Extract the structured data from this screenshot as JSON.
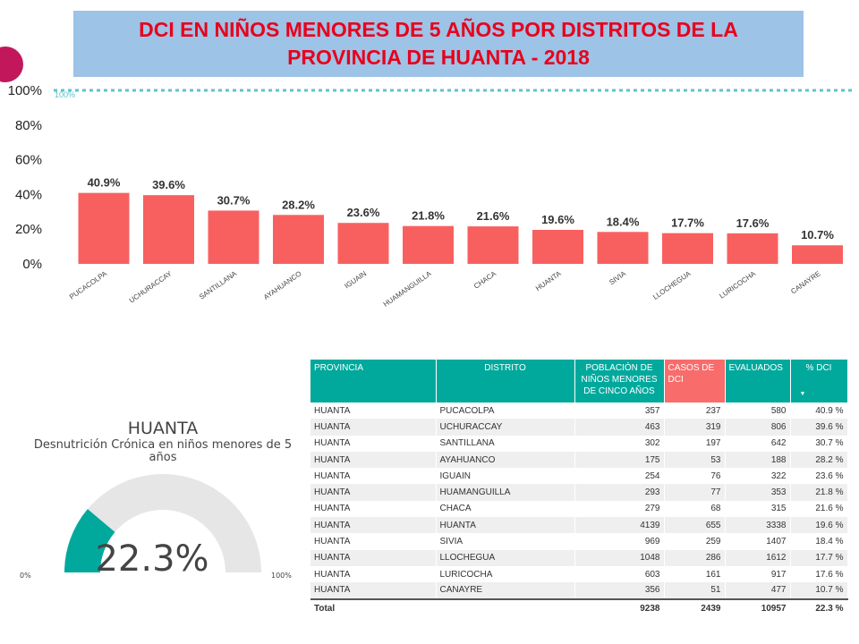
{
  "title": {
    "line1": "DCI EN NIÑOS MENORES DE 5 AÑOS POR DISTRITOS DE LA",
    "line2": "PROVINCIA DE HUANTA - 2018"
  },
  "colors": {
    "bar": "#f86060",
    "teal": "#01a99d",
    "reference_line": "#5fc3c8",
    "gauge_track": "#e6e6e6",
    "title_bg": "#9dc3e6",
    "title_text": "#e8001c"
  },
  "chart_data": {
    "type": "bar",
    "categories": [
      "PUCACOLPA",
      "UCHURACCAY",
      "SANTILLANA",
      "AYAHUANCO",
      "IGUAIN",
      "HUAMANGUILLA",
      "CHACA",
      "HUANTA",
      "SIVIA",
      "LLOCHEGUA",
      "LURICOCHA",
      "CANAYRE"
    ],
    "values": [
      40.9,
      39.6,
      30.7,
      28.2,
      23.6,
      21.8,
      21.6,
      19.6,
      18.4,
      17.7,
      17.6,
      10.7
    ],
    "data_labels": [
      "40.9%",
      "39.6%",
      "30.7%",
      "28.2%",
      "23.6%",
      "21.8%",
      "21.6%",
      "19.6%",
      "18.4%",
      "17.7%",
      "17.6%",
      "10.7%"
    ],
    "yticks": [
      0,
      20,
      40,
      60,
      80,
      100
    ],
    "ytick_labels": [
      "0%",
      "20%",
      "40%",
      "60%",
      "80%",
      "100%"
    ],
    "ylim": [
      0,
      100
    ],
    "reference_line": {
      "value": 100,
      "label": "100%"
    },
    "grid": false
  },
  "gauge": {
    "title": "HUANTA",
    "subtitle_line1": "Desnutrición Crónica en niños menores de 5",
    "subtitle_line2": "años",
    "value": 22.3,
    "value_label": "22.3%",
    "min_label": "0%",
    "max_label": "100%"
  },
  "table": {
    "headers": {
      "provincia": "PROVINCIA",
      "distrito": "DISTRITO",
      "poblacion_1": "POBLACIÓN DE",
      "poblacion_2": "NIÑOS MENORES",
      "poblacion_3": "DE CINCO AÑOS",
      "casos_1": "CASOS DE",
      "casos_2": "DCI",
      "evaluados": "EVALUADOS",
      "pct": "% DCI"
    },
    "rows": [
      {
        "provincia": "HUANTA",
        "distrito": "PUCACOLPA",
        "poblacion": "357",
        "casos": "237",
        "evaluados": "580",
        "pct": "40.9 %"
      },
      {
        "provincia": "HUANTA",
        "distrito": "UCHURACCAY",
        "poblacion": "463",
        "casos": "319",
        "evaluados": "806",
        "pct": "39.6 %"
      },
      {
        "provincia": "HUANTA",
        "distrito": "SANTILLANA",
        "poblacion": "302",
        "casos": "197",
        "evaluados": "642",
        "pct": "30.7 %"
      },
      {
        "provincia": "HUANTA",
        "distrito": "AYAHUANCO",
        "poblacion": "175",
        "casos": "53",
        "evaluados": "188",
        "pct": "28.2 %"
      },
      {
        "provincia": "HUANTA",
        "distrito": "IGUAIN",
        "poblacion": "254",
        "casos": "76",
        "evaluados": "322",
        "pct": "23.6 %"
      },
      {
        "provincia": "HUANTA",
        "distrito": "HUAMANGUILLA",
        "poblacion": "293",
        "casos": "77",
        "evaluados": "353",
        "pct": "21.8 %"
      },
      {
        "provincia": "HUANTA",
        "distrito": "CHACA",
        "poblacion": "279",
        "casos": "68",
        "evaluados": "315",
        "pct": "21.6 %"
      },
      {
        "provincia": "HUANTA",
        "distrito": "HUANTA",
        "poblacion": "4139",
        "casos": "655",
        "evaluados": "3338",
        "pct": "19.6 %"
      },
      {
        "provincia": "HUANTA",
        "distrito": "SIVIA",
        "poblacion": "969",
        "casos": "259",
        "evaluados": "1407",
        "pct": "18.4 %"
      },
      {
        "provincia": "HUANTA",
        "distrito": "LLOCHEGUA",
        "poblacion": "1048",
        "casos": "286",
        "evaluados": "1612",
        "pct": "17.7 %"
      },
      {
        "provincia": "HUANTA",
        "distrito": "LURICOCHA",
        "poblacion": "603",
        "casos": "161",
        "evaluados": "917",
        "pct": "17.6 %"
      },
      {
        "provincia": "HUANTA",
        "distrito": "CANAYRE",
        "poblacion": "356",
        "casos": "51",
        "evaluados": "477",
        "pct": "10.7 %"
      }
    ],
    "total": {
      "label": "Total",
      "poblacion": "9238",
      "casos": "2439",
      "evaluados": "10957",
      "pct": "22.3 %"
    }
  }
}
